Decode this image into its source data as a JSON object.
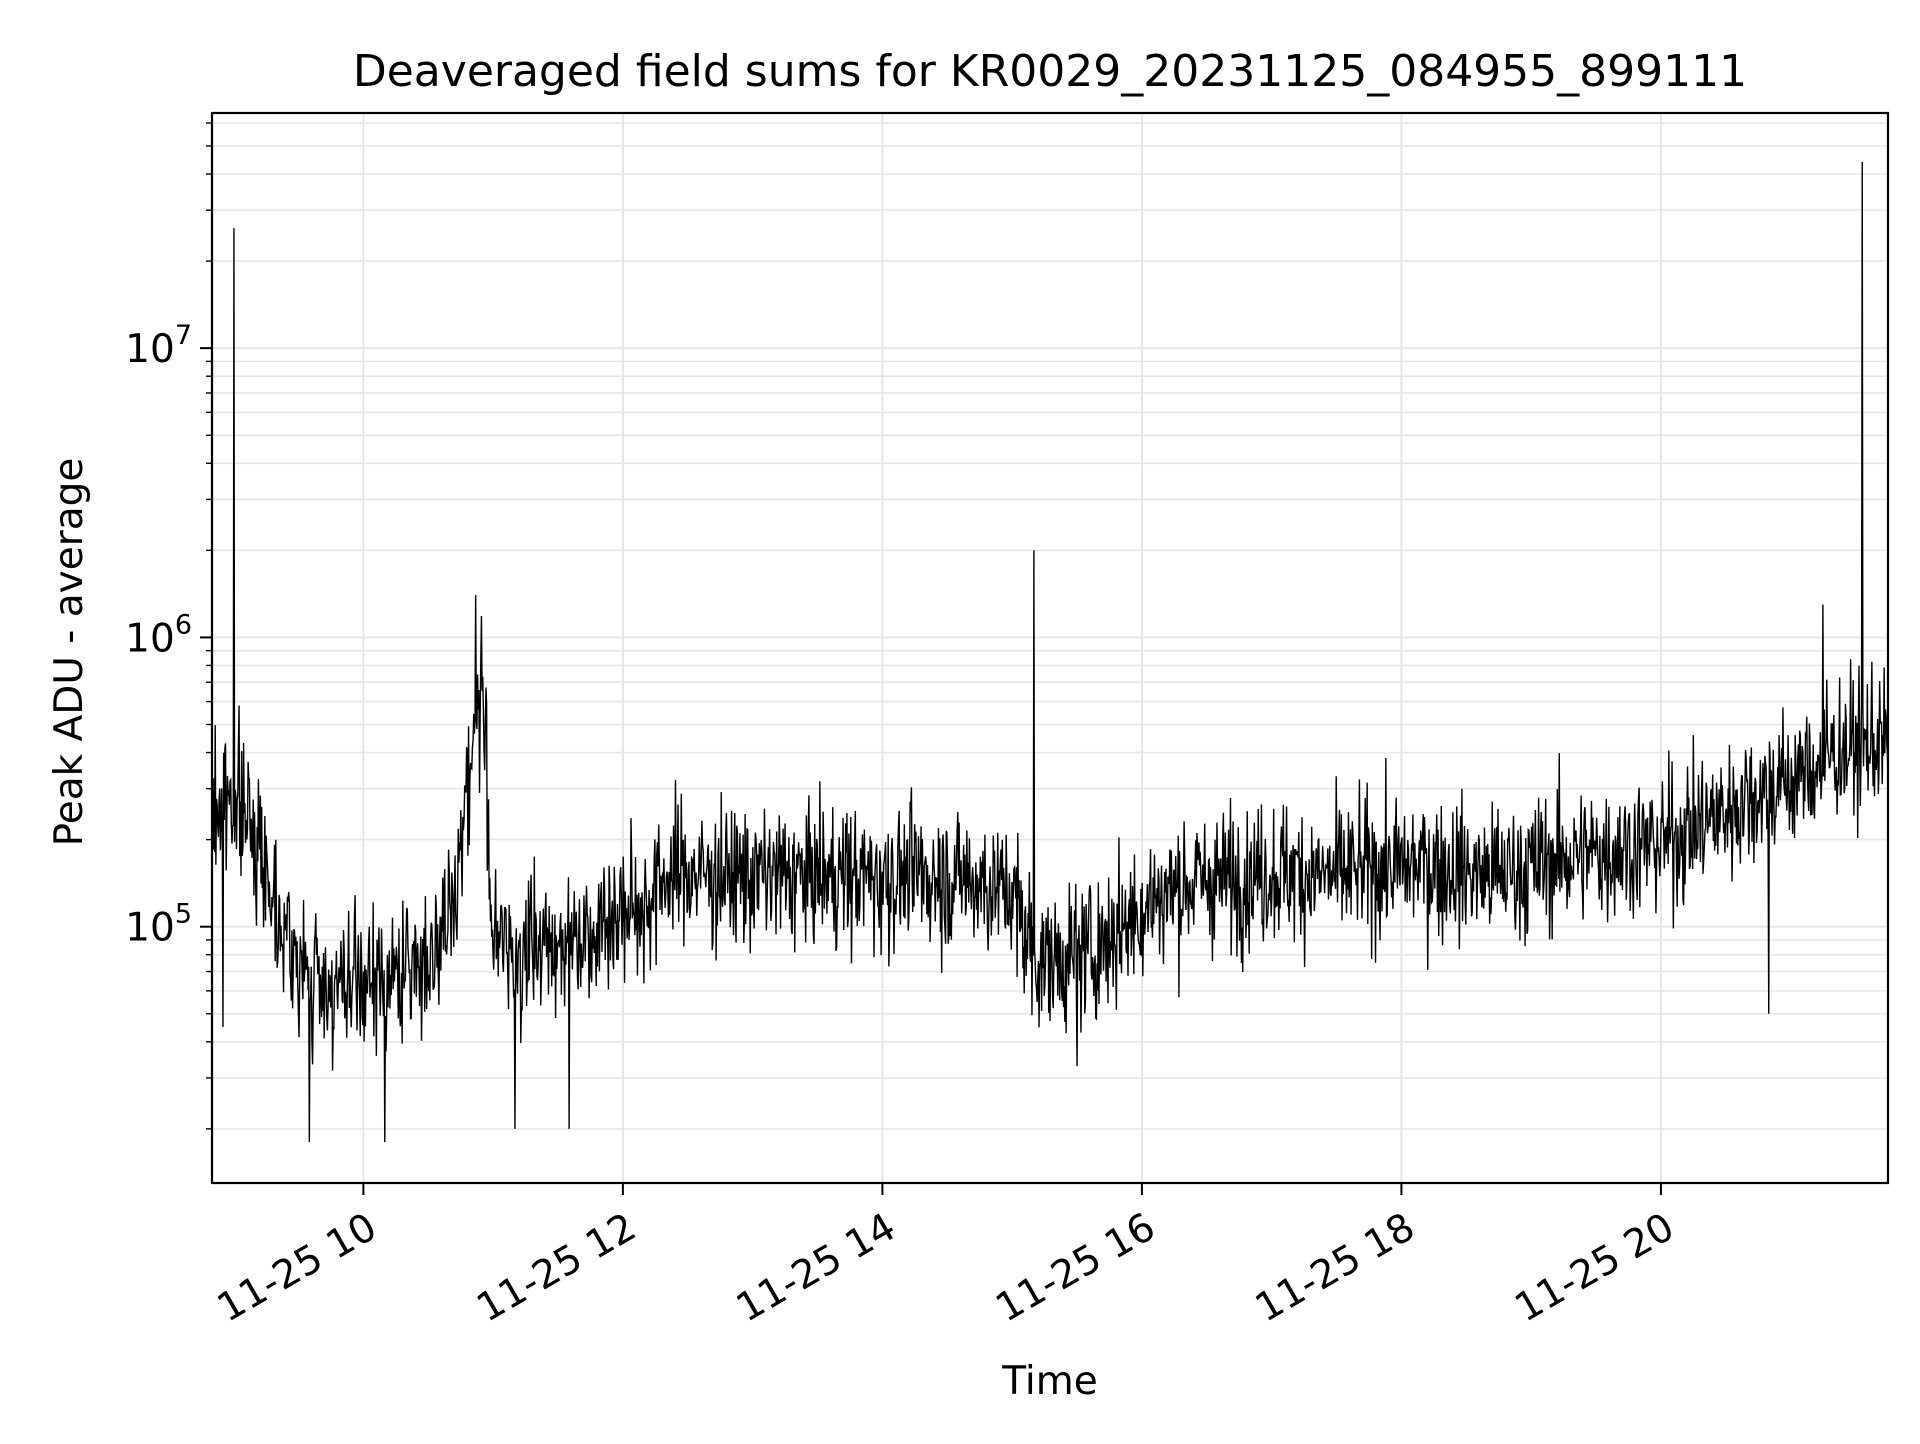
{
  "chart_data": {
    "type": "line",
    "title": "Deaveraged field sums for KR0029_20231125_084955_899111",
    "xlabel": "Time",
    "ylabel": "Peak ADU - average",
    "y_scale": "log",
    "grid": true,
    "xlim": [
      "2023-11-25 08:50",
      "2023-11-25 21:45"
    ],
    "ylim": [
      13000,
      65000000
    ],
    "x_tick_labels": [
      "11-25 10",
      "11-25 12",
      "11-25 14",
      "11-25 16",
      "11-25 18",
      "11-25 20"
    ],
    "x_ticks": [
      "2023-11-25 10:00",
      "2023-11-25 12:00",
      "2023-11-25 14:00",
      "2023-11-25 16:00",
      "2023-11-25 18:00",
      "2023-11-25 20:00"
    ],
    "y_ticks": [
      100000,
      1000000,
      10000000
    ],
    "y_tick_labels": [
      {
        "base": "10",
        "exp": "5"
      },
      {
        "base": "10",
        "exp": "6"
      },
      {
        "base": "10",
        "exp": "7"
      }
    ],
    "series": [
      {
        "color": "#000000",
        "x": [
          "2023-11-25 08:50",
          "2023-11-25 09:00",
          "2023-11-25 09:10",
          "2023-11-25 09:20",
          "2023-11-25 09:30",
          "2023-11-25 09:40",
          "2023-11-25 09:50",
          "2023-11-25 10:00",
          "2023-11-25 10:10",
          "2023-11-25 10:20",
          "2023-11-25 10:30",
          "2023-11-25 10:40",
          "2023-11-25 10:50",
          "2023-11-25 10:55",
          "2023-11-25 11:00",
          "2023-11-25 11:10",
          "2023-11-25 11:20",
          "2023-11-25 11:30",
          "2023-11-25 11:40",
          "2023-11-25 11:50",
          "2023-11-25 12:00",
          "2023-11-25 12:10",
          "2023-11-25 12:20",
          "2023-11-25 12:30",
          "2023-11-25 12:40",
          "2023-11-25 12:50",
          "2023-11-25 13:00",
          "2023-11-25 13:10",
          "2023-11-25 13:20",
          "2023-11-25 13:30",
          "2023-11-25 13:40",
          "2023-11-25 13:50",
          "2023-11-25 14:00",
          "2023-11-25 14:10",
          "2023-11-25 14:20",
          "2023-11-25 14:30",
          "2023-11-25 14:40",
          "2023-11-25 14:50",
          "2023-11-25 15:00",
          "2023-11-25 15:10",
          "2023-11-25 15:20",
          "2023-11-25 15:30",
          "2023-11-25 15:40",
          "2023-11-25 15:50",
          "2023-11-25 16:00",
          "2023-11-25 16:10",
          "2023-11-25 16:20",
          "2023-11-25 16:30",
          "2023-11-25 16:40",
          "2023-11-25 16:50",
          "2023-11-25 17:00",
          "2023-11-25 17:10",
          "2023-11-25 17:20",
          "2023-11-25 17:30",
          "2023-11-25 17:40",
          "2023-11-25 17:50",
          "2023-11-25 18:00",
          "2023-11-25 18:10",
          "2023-11-25 18:20",
          "2023-11-25 18:30",
          "2023-11-25 18:40",
          "2023-11-25 18:50",
          "2023-11-25 19:00",
          "2023-11-25 19:10",
          "2023-11-25 19:20",
          "2023-11-25 19:30",
          "2023-11-25 19:40",
          "2023-11-25 19:50",
          "2023-11-25 20:00",
          "2023-11-25 20:10",
          "2023-11-25 20:20",
          "2023-11-25 20:30",
          "2023-11-25 20:40",
          "2023-11-25 20:50",
          "2023-11-25 21:00",
          "2023-11-25 21:10",
          "2023-11-25 21:20",
          "2023-11-25 21:30",
          "2023-11-25 21:40",
          "2023-11-25 21:45"
        ],
        "values": [
          250000,
          280000,
          210000,
          120000,
          70000,
          65000,
          60000,
          62000,
          65000,
          70000,
          80000,
          100000,
          400000,
          700000,
          90000,
          80000,
          85000,
          90000,
          95000,
          105000,
          110000,
          120000,
          150000,
          155000,
          150000,
          150000,
          150000,
          150000,
          148000,
          150000,
          150000,
          148000,
          148000,
          150000,
          150000,
          148000,
          145000,
          140000,
          130000,
          80000,
          75000,
          80000,
          85000,
          100000,
          115000,
          130000,
          140000,
          145000,
          145000,
          150000,
          155000,
          155000,
          150000,
          150000,
          155000,
          160000,
          160000,
          165000,
          160000,
          155000,
          150000,
          155000,
          160000,
          170000,
          175000,
          180000,
          185000,
          190000,
          195000,
          210000,
          230000,
          250000,
          280000,
          300000,
          320000,
          350000,
          400000,
          420000,
          440000,
          430000
        ],
        "spikes": [
          {
            "x": "2023-11-25 09:00",
            "y": 26000000
          },
          {
            "x": "2023-11-25 10:52",
            "y": 1400000
          },
          {
            "x": "2023-11-25 15:10",
            "y": 2000000
          },
          {
            "x": "2023-11-25 21:15",
            "y": 1300000
          },
          {
            "x": "2023-11-25 21:33",
            "y": 44000000
          }
        ],
        "low_dips": [
          {
            "x": "2023-11-25 08:55",
            "y": 45000
          },
          {
            "x": "2023-11-25 09:35",
            "y": 18000
          },
          {
            "x": "2023-11-25 10:10",
            "y": 18000
          },
          {
            "x": "2023-11-25 11:10",
            "y": 20000
          },
          {
            "x": "2023-11-25 11:35",
            "y": 20000
          },
          {
            "x": "2023-11-25 15:30",
            "y": 33000
          },
          {
            "x": "2023-11-25 20:50",
            "y": 50000
          }
        ]
      }
    ]
  }
}
